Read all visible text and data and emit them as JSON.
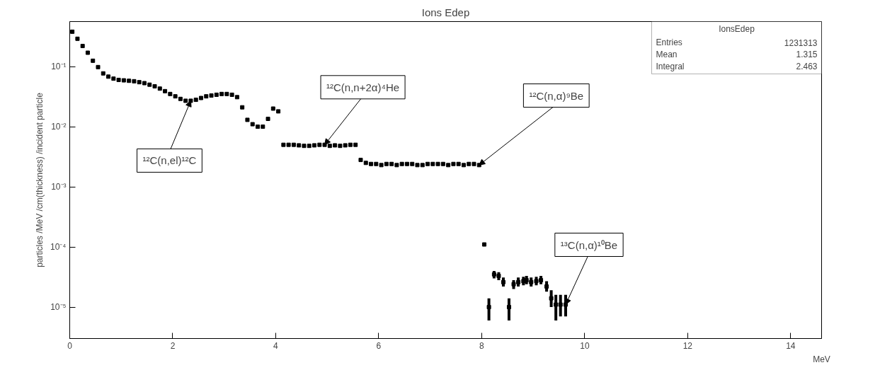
{
  "chart_data": {
    "type": "scatter",
    "title": "Ions Edep",
    "xlabel": "MeV",
    "ylabel": "particles /MeV /cm(thickness) /incident particle",
    "xlim": [
      0,
      14.6
    ],
    "ylim": [
      3e-06,
      0.56
    ],
    "xticks": [
      0,
      2,
      4,
      6,
      8,
      10,
      12,
      14
    ],
    "yticks": [
      {
        "value": 1e-05,
        "label": "10⁻⁵"
      },
      {
        "value": 0.0001,
        "label": "10⁻⁴"
      },
      {
        "value": 0.001,
        "label": "10⁻³"
      },
      {
        "value": 0.01,
        "label": "10⁻²"
      },
      {
        "value": 0.1,
        "label": "10⁻¹"
      }
    ],
    "log": "y",
    "marker": "square",
    "annotations": [
      {
        "text": "¹²C(n,el)¹²C",
        "x": 2.35,
        "y": 0.027
      },
      {
        "text": "¹²C(n,n+2α)⁴He",
        "x": 4.95,
        "y": 0.005
      },
      {
        "text": "¹²C(n,α)⁹Be",
        "x": 7.95,
        "y": 0.0023
      },
      {
        "text": "¹³C(n,α)¹⁰Be",
        "x": 9.63,
        "y": 1.1e-05
      },
      "IonsEdep",
      "Entries",
      "1231313",
      "Mean",
      "1.315",
      "Integral",
      "2.463"
    ],
    "series": [
      {
        "color": "#000000",
        "x": [
          0.05,
          0.15,
          0.25,
          0.35,
          0.45,
          0.55,
          0.65,
          0.75,
          0.85,
          0.95,
          1.05,
          1.15,
          1.25,
          1.35,
          1.45,
          1.55,
          1.65,
          1.75,
          1.85,
          1.95,
          2.05,
          2.15,
          2.25,
          2.35,
          2.45,
          2.55,
          2.65,
          2.75,
          2.85,
          2.95,
          3.05,
          3.15,
          3.25,
          3.35,
          3.45,
          3.55,
          3.65,
          3.75,
          3.85,
          3.95,
          4.05,
          4.15,
          4.25,
          4.35,
          4.45,
          4.55,
          4.65,
          4.75,
          4.85,
          4.95,
          5.05,
          5.15,
          5.25,
          5.35,
          5.45,
          5.55,
          5.65,
          5.75,
          5.85,
          5.95,
          6.05,
          6.15,
          6.25,
          6.35,
          6.45,
          6.55,
          6.65,
          6.75,
          6.85,
          6.95,
          7.05,
          7.15,
          7.25,
          7.35,
          7.45,
          7.55,
          7.65,
          7.75,
          7.85,
          7.95,
          8.05,
          8.14,
          8.24,
          8.33,
          8.42,
          8.53,
          8.62,
          8.71,
          8.81,
          8.87,
          8.96,
          9.06,
          9.15,
          9.26,
          9.35,
          9.44,
          9.53,
          9.63
        ],
        "values": [
          0.38,
          0.29,
          0.22,
          0.17,
          0.125,
          0.098,
          0.077,
          0.068,
          0.063,
          0.06,
          0.059,
          0.058,
          0.057,
          0.055,
          0.053,
          0.05,
          0.047,
          0.043,
          0.039,
          0.035,
          0.032,
          0.029,
          0.027,
          0.027,
          0.028,
          0.03,
          0.032,
          0.033,
          0.034,
          0.035,
          0.035,
          0.034,
          0.031,
          0.021,
          0.013,
          0.011,
          0.01,
          0.01,
          0.0135,
          0.02,
          0.018,
          0.005,
          0.005,
          0.005,
          0.0049,
          0.0048,
          0.0048,
          0.0049,
          0.005,
          0.005,
          0.0048,
          0.0049,
          0.0048,
          0.0049,
          0.005,
          0.005,
          0.0028,
          0.0025,
          0.0024,
          0.0024,
          0.0023,
          0.0024,
          0.0024,
          0.0023,
          0.0024,
          0.0024,
          0.0024,
          0.0023,
          0.0023,
          0.0024,
          0.0024,
          0.0024,
          0.0024,
          0.0023,
          0.0024,
          0.0024,
          0.0023,
          0.0024,
          0.0024,
          0.0023,
          0.00011,
          1e-05,
          3.5e-05,
          3.3e-05,
          2.6e-05,
          1e-05,
          2.4e-05,
          2.6e-05,
          2.7e-05,
          2.8e-05,
          2.6e-05,
          2.7e-05,
          2.8e-05,
          2.2e-05,
          1.4e-05,
          1.1e-05,
          1.1e-05,
          1.1e-05
        ],
        "errors": [
          null,
          null,
          null,
          null,
          null,
          null,
          null,
          null,
          null,
          null,
          null,
          null,
          null,
          null,
          null,
          null,
          null,
          null,
          null,
          null,
          null,
          null,
          null,
          null,
          null,
          null,
          null,
          null,
          null,
          null,
          null,
          null,
          null,
          null,
          null,
          null,
          null,
          null,
          null,
          null,
          null,
          null,
          null,
          null,
          null,
          null,
          null,
          null,
          null,
          null,
          null,
          null,
          null,
          null,
          null,
          null,
          null,
          null,
          null,
          null,
          null,
          null,
          null,
          null,
          null,
          null,
          null,
          null,
          null,
          null,
          null,
          null,
          null,
          null,
          null,
          null,
          null,
          null,
          null,
          null,
          null,
          [
            6e-06,
            1.4e-05
          ],
          [
            3e-05,
            4e-05
          ],
          [
            2.8e-05,
            3.8e-05
          ],
          [
            2.2e-05,
            3.1e-05
          ],
          [
            6e-06,
            1.4e-05
          ],
          [
            2e-05,
            2.8e-05
          ],
          [
            2.2e-05,
            3.1e-05
          ],
          [
            2.3e-05,
            3.2e-05
          ],
          [
            2.4e-05,
            3.3e-05
          ],
          [
            2.2e-05,
            3.1e-05
          ],
          [
            2.3e-05,
            3.2e-05
          ],
          [
            2.4e-05,
            3.3e-05
          ],
          [
            1.8e-05,
            2.7e-05
          ],
          [
            1e-05,
            1.9e-05
          ],
          [
            6e-06,
            1.6e-05
          ],
          [
            7e-06,
            1.6e-05
          ],
          [
            7e-06,
            1.6e-05
          ]
        ]
      }
    ]
  }
}
